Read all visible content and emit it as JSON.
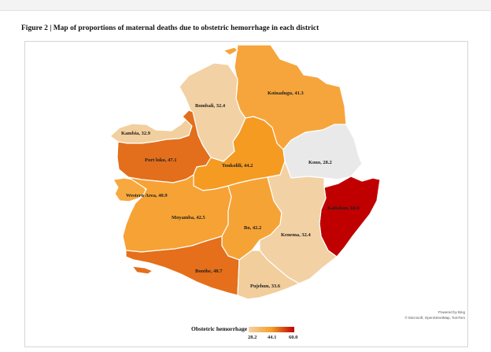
{
  "figure": {
    "title": "Figure 2 | Map of proportions of maternal deaths due to obstetric hemorrhage in each district"
  },
  "colors": {
    "low": "#f3d2a3",
    "mid": "#f59f2a",
    "high": "#c00000",
    "no_data": "#e9e9e9",
    "border": "#ffffff"
  },
  "districts": [
    {
      "name": "Koinadugu",
      "value": 41.3,
      "label": "Koinadugu, 41.3",
      "fill": "#f6a53c"
    },
    {
      "name": "Bombali",
      "value": 32.4,
      "label": "Bombali, 32.4",
      "fill": "#f2d1a4"
    },
    {
      "name": "Kambia",
      "value": 32.9,
      "label": "Kambia, 32.9",
      "fill": "#f2cf9e"
    },
    {
      "name": "Port loko",
      "value": 47.1,
      "label": "Port loko, 47.1",
      "fill": "#e36f1c"
    },
    {
      "name": "Tonkolili",
      "value": 44.2,
      "label": "Tonkolili, 44.2",
      "fill": "#f59b22"
    },
    {
      "name": "Kono",
      "value": 28.2,
      "label": "Kono, 28.2",
      "fill": "#e9e9e9"
    },
    {
      "name": "Western Area",
      "value": 40.9,
      "label": "Western Area, 40.9",
      "fill": "#f7a93f"
    },
    {
      "name": "Moyamba",
      "value": 42.5,
      "label": "Moyamba, 42.5",
      "fill": "#f6a235"
    },
    {
      "name": "Bo",
      "value": 42.2,
      "label": "Bo, 42.2",
      "fill": "#f6a336"
    },
    {
      "name": "Kailahun",
      "value": 60.0,
      "label": "Kailahun, 60.0",
      "fill": "#c00000"
    },
    {
      "name": "Kenema",
      "value": 32.4,
      "label": "Kenema, 32.4",
      "fill": "#f2d1a4"
    },
    {
      "name": "Bonthe",
      "value": 48.7,
      "label": "Bonthe, 48.7",
      "fill": "#e56f1a"
    },
    {
      "name": "Pujehun",
      "value": 33.6,
      "label": "Pujehun, 33.6",
      "fill": "#f2ce9c"
    }
  ],
  "legend": {
    "title": "Obstetric hemorrhage",
    "min": "28.2",
    "mid": "44.1",
    "max": "60.0"
  },
  "attribution": {
    "line1": "Powered by Bing",
    "line2": "© Microsoft, OpenStreetMap, TomTom"
  }
}
